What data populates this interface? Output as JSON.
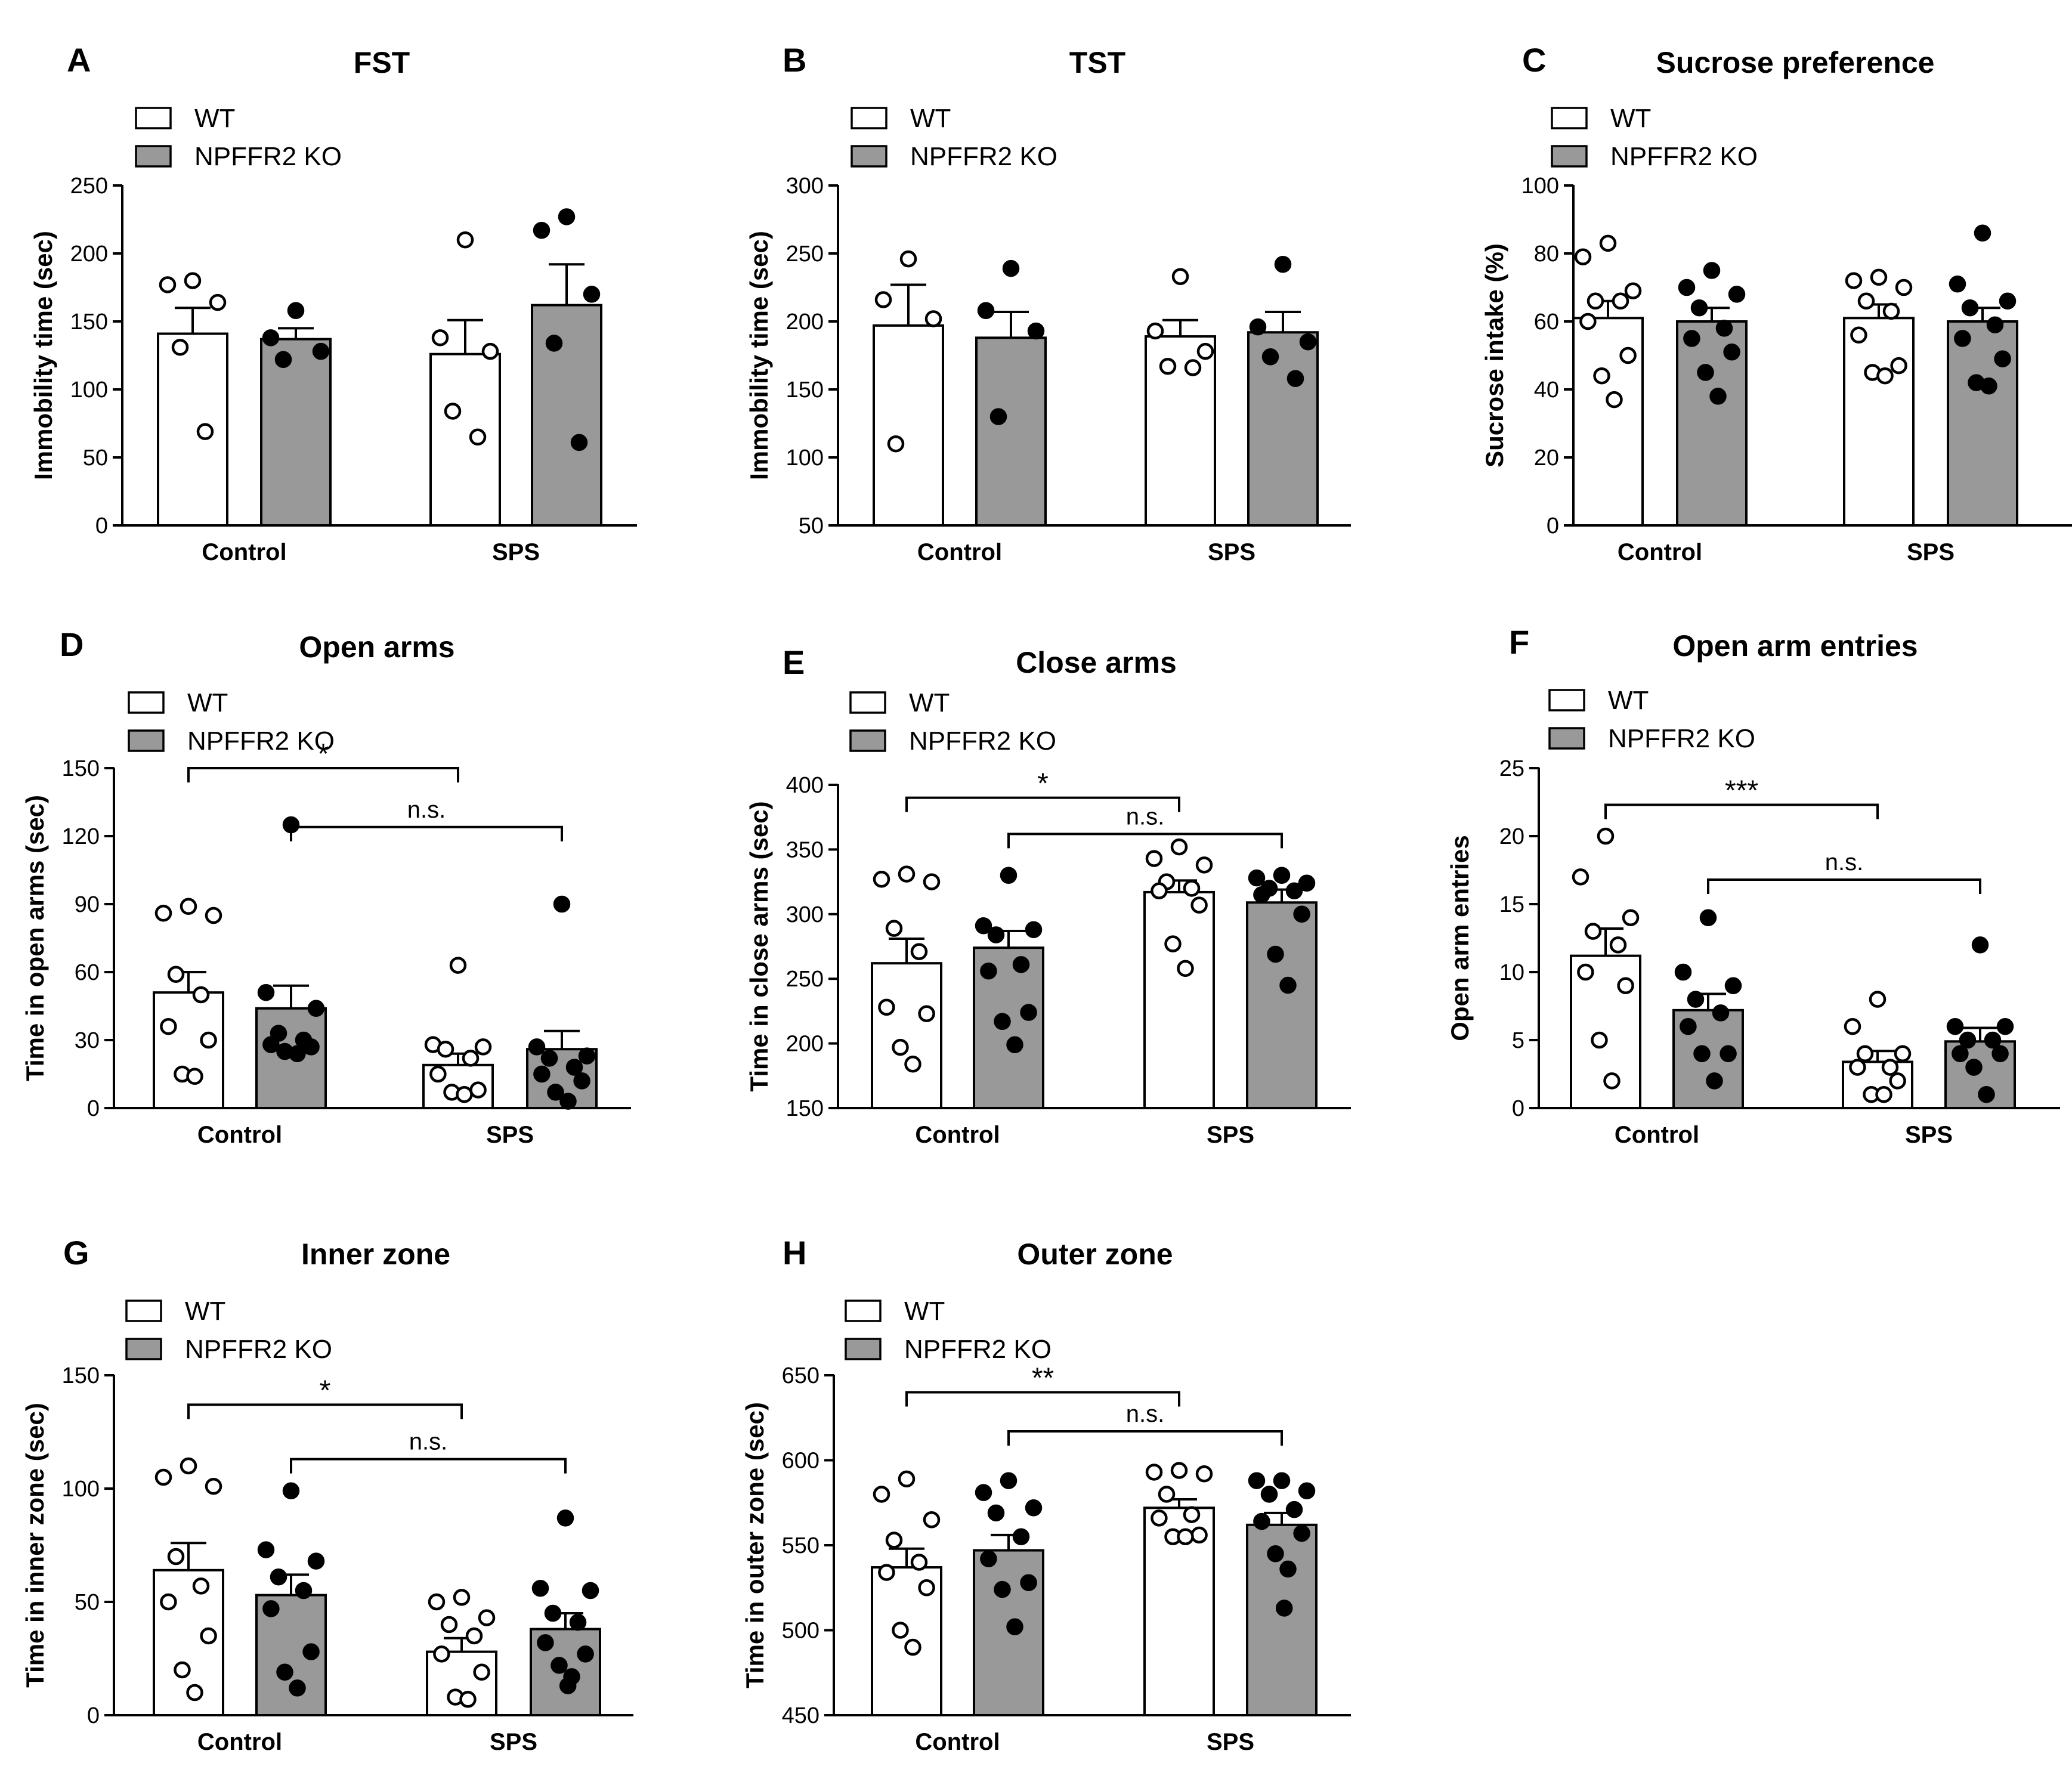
{
  "colors": {
    "wt_fill": "#ffffff",
    "ko_fill": "#999999",
    "stroke": "#000000"
  },
  "chart_data": [
    {
      "id": "A",
      "letter": "A",
      "title": "FST",
      "type": "bar",
      "ylabel": "Immobility time (sec)",
      "ylim": [
        0,
        250
      ],
      "yticks": [
        0,
        50,
        100,
        150,
        200,
        250
      ],
      "categories": [
        "Control",
        "SPS"
      ],
      "legend": [
        "WT",
        "NPFFR2 KO"
      ],
      "series": [
        {
          "name": "WT",
          "values": [
            141,
            126
          ],
          "sem": [
            19,
            25
          ],
          "points": [
            [
              180,
              177,
              164,
              131,
              69
            ],
            [
              210,
              138,
              128,
              84,
              65
            ]
          ]
        },
        {
          "name": "NPFFR2 KO",
          "values": [
            137,
            162
          ],
          "sem": [
            8,
            30
          ],
          "points": [
            [
              158,
              138,
              128,
              122
            ],
            [
              227,
              217,
              170,
              134,
              61
            ]
          ]
        }
      ],
      "comparisons": []
    },
    {
      "id": "B",
      "letter": "B",
      "title": "TST",
      "type": "bar",
      "ylabel": "Immobility time (sec)",
      "ylim": [
        50,
        300
      ],
      "yticks": [
        50,
        100,
        150,
        200,
        250,
        300
      ],
      "categories": [
        "Control",
        "SPS"
      ],
      "legend": [
        "WT",
        "NPFFR2 KO"
      ],
      "series": [
        {
          "name": "WT",
          "values": [
            197,
            189
          ],
          "sem": [
            30,
            12
          ],
          "points": [
            [
              246,
              216,
              202,
              110
            ],
            [
              233,
              193,
              178,
              167,
              166
            ]
          ]
        },
        {
          "name": "NPFFR2 KO",
          "values": [
            188,
            192
          ],
          "sem": [
            19,
            15
          ],
          "points": [
            [
              239,
              208,
              193,
              130
            ],
            [
              242,
              196,
              185,
              174,
              158
            ]
          ]
        }
      ],
      "comparisons": []
    },
    {
      "id": "C",
      "letter": "C",
      "title": "Sucrose preference",
      "type": "bar",
      "ylabel": "Sucrose intake (%)",
      "ylim": [
        0,
        100
      ],
      "yticks": [
        0,
        20,
        40,
        60,
        80,
        100
      ],
      "categories": [
        "Control",
        "SPS"
      ],
      "legend": [
        "WT",
        "NPFFR2 KO"
      ],
      "series": [
        {
          "name": "WT",
          "values": [
            61,
            61
          ],
          "sem": [
            5,
            4
          ],
          "points": [
            [
              83,
              79,
              69,
              66,
              66,
              60,
              50,
              44,
              37
            ],
            [
              73,
              72,
              70,
              66,
              63,
              56,
              47,
              45,
              44
            ]
          ]
        },
        {
          "name": "NPFFR2 KO",
          "values": [
            60,
            60
          ],
          "sem": [
            4,
            4
          ],
          "points": [
            [
              75,
              70,
              68,
              64,
              58,
              55,
              51,
              45,
              38
            ],
            [
              86,
              71,
              66,
              64,
              59,
              55,
              49,
              42,
              41
            ]
          ]
        }
      ],
      "comparisons": []
    },
    {
      "id": "D",
      "letter": "D",
      "title": "Open arms",
      "type": "bar",
      "ylabel": "Time in open arms (sec)",
      "ylim": [
        0,
        150
      ],
      "yticks": [
        0,
        30,
        60,
        90,
        120,
        150
      ],
      "categories": [
        "Control",
        "SPS"
      ],
      "legend": [
        "WT",
        "NPFFR2 KO"
      ],
      "series": [
        {
          "name": "WT",
          "values": [
            51,
            19
          ],
          "sem": [
            9,
            5
          ],
          "points": [
            [
              89,
              86,
              85,
              59,
              50,
              36,
              30,
              15,
              14
            ],
            [
              63,
              28,
              27,
              26,
              22,
              15,
              8,
              7,
              6
            ]
          ]
        },
        {
          "name": "NPFFR2 KO",
          "values": [
            44,
            26
          ],
          "sem": [
            10,
            8
          ],
          "points": [
            [
              125,
              51,
              44,
              33,
              30,
              28,
              27,
              25,
              24
            ],
            [
              90,
              27,
              23,
              22,
              18,
              15,
              12,
              7,
              3
            ]
          ]
        }
      ],
      "comparisons": [
        {
          "from": [
            0,
            0
          ],
          "to": [
            1,
            0
          ],
          "level": 150,
          "label": "*"
        },
        {
          "from": [
            0,
            1
          ],
          "to": [
            1,
            1
          ],
          "level": 124,
          "label": "n.s."
        }
      ]
    },
    {
      "id": "E",
      "letter": "E",
      "title": "Close arms",
      "type": "bar",
      "ylabel": "Time in close arms (sec)",
      "ylim": [
        150,
        400
      ],
      "yticks": [
        150,
        200,
        250,
        300,
        350,
        400
      ],
      "categories": [
        "Control",
        "SPS"
      ],
      "legend": [
        "WT",
        "NPFFR2 KO"
      ],
      "series": [
        {
          "name": "WT",
          "values": [
            262,
            317
          ],
          "sem": [
            19,
            9
          ],
          "points": [
            [
              331,
              327,
              325,
              289,
              271,
              228,
              223,
              197,
              184
            ],
            [
              352,
              343,
              338,
              325,
              320,
              318,
              307,
              277,
              258
            ]
          ]
        },
        {
          "name": "NPFFR2 KO",
          "values": [
            274,
            309
          ],
          "sem": [
            13,
            10
          ],
          "points": [
            [
              330,
              291,
              288,
              284,
              261,
              256,
              224,
              217,
              199
            ],
            [
              330,
              328,
              324,
              320,
              318,
              315,
              300,
              269,
              245
            ]
          ]
        }
      ],
      "comparisons": [
        {
          "from": [
            0,
            0
          ],
          "to": [
            1,
            0
          ],
          "level": 390,
          "label": "*"
        },
        {
          "from": [
            0,
            1
          ],
          "to": [
            1,
            1
          ],
          "level": 362,
          "label": "n.s."
        }
      ]
    },
    {
      "id": "F",
      "letter": "F",
      "title": "Open arm entries",
      "type": "bar",
      "ylabel": "Open arm entries",
      "ylim": [
        0,
        25
      ],
      "yticks": [
        0,
        5,
        10,
        15,
        20,
        25
      ],
      "categories": [
        "Control",
        "SPS"
      ],
      "legend": [
        "WT",
        "NPFFR2 KO"
      ],
      "series": [
        {
          "name": "WT",
          "values": [
            11.2,
            3.4
          ],
          "sem": [
            2,
            0.8
          ],
          "points": [
            [
              20,
              17,
              14,
              13,
              12,
              10,
              9,
              5,
              2
            ],
            [
              8,
              6,
              4,
              4,
              3,
              3,
              2,
              1,
              1
            ]
          ]
        },
        {
          "name": "NPFFR2 KO",
          "values": [
            7.2,
            4.9
          ],
          "sem": [
            1.2,
            1
          ],
          "points": [
            [
              14,
              10,
              9,
              8,
              7,
              6,
              4,
              4,
              2
            ],
            [
              12,
              6,
              6,
              5,
              5,
              4,
              4,
              3,
              1
            ]
          ]
        }
      ],
      "comparisons": [
        {
          "from": [
            0,
            0
          ],
          "to": [
            1,
            0
          ],
          "level": 22.3,
          "label": "***"
        },
        {
          "from": [
            0,
            1
          ],
          "to": [
            1,
            1
          ],
          "level": 16.8,
          "label": "n.s."
        }
      ]
    },
    {
      "id": "G",
      "letter": "G",
      "title": "Inner zone",
      "type": "bar",
      "ylabel": "Time in inner zone (sec)",
      "ylim": [
        0,
        150
      ],
      "yticks": [
        0,
        50,
        100,
        150
      ],
      "categories": [
        "Control",
        "SPS"
      ],
      "legend": [
        "WT",
        "NPFFR2 KO"
      ],
      "series": [
        {
          "name": "WT",
          "values": [
            64,
            28
          ],
          "sem": [
            12,
            6
          ],
          "points": [
            [
              110,
              105,
              101,
              70,
              57,
              50,
              35,
              20,
              10
            ],
            [
              52,
              50,
              43,
              40,
              35,
              27,
              19,
              8,
              7
            ]
          ]
        },
        {
          "name": "NPFFR2 KO",
          "values": [
            53,
            38
          ],
          "sem": [
            9,
            7
          ],
          "points": [
            [
              99,
              73,
              68,
              61,
              55,
              47,
              28,
              19,
              12
            ],
            [
              87,
              56,
              55,
              45,
              41,
              32,
              27,
              22,
              17,
              13
            ]
          ]
        }
      ],
      "comparisons": [
        {
          "from": [
            0,
            0
          ],
          "to": [
            1,
            0
          ],
          "level": 137,
          "label": "*"
        },
        {
          "from": [
            0,
            1
          ],
          "to": [
            1,
            1
          ],
          "level": 113,
          "label": "n.s."
        }
      ]
    },
    {
      "id": "H",
      "letter": "H",
      "title": "Outer zone",
      "type": "bar",
      "ylabel": "Time in outer zone (sec)",
      "ylim": [
        450,
        650
      ],
      "yticks": [
        450,
        500,
        550,
        600,
        650
      ],
      "categories": [
        "Control",
        "SPS"
      ],
      "legend": [
        "WT",
        "NPFFR2 KO"
      ],
      "series": [
        {
          "name": "WT",
          "values": [
            537,
            572
          ],
          "sem": [
            11,
            5
          ],
          "points": [
            [
              589,
              580,
              565,
              553,
              540,
              534,
              525,
              500,
              490
            ],
            [
              594,
              593,
              592,
              580,
              568,
              566,
              556,
              555,
              555
            ]
          ]
        },
        {
          "name": "NPFFR2 KO",
          "values": [
            547,
            562
          ],
          "sem": [
            9,
            7
          ],
          "points": [
            [
              588,
              581,
              572,
              569,
              555,
              542,
              528,
              524,
              502
            ],
            [
              588,
              588,
              582,
              580,
              571,
              564,
              557,
              545,
              536,
              513
            ]
          ]
        }
      ],
      "comparisons": [
        {
          "from": [
            0,
            0
          ],
          "to": [
            1,
            0
          ],
          "level": 640,
          "label": "**"
        },
        {
          "from": [
            0,
            1
          ],
          "to": [
            1,
            1
          ],
          "level": 617,
          "label": "n.s."
        }
      ]
    }
  ]
}
